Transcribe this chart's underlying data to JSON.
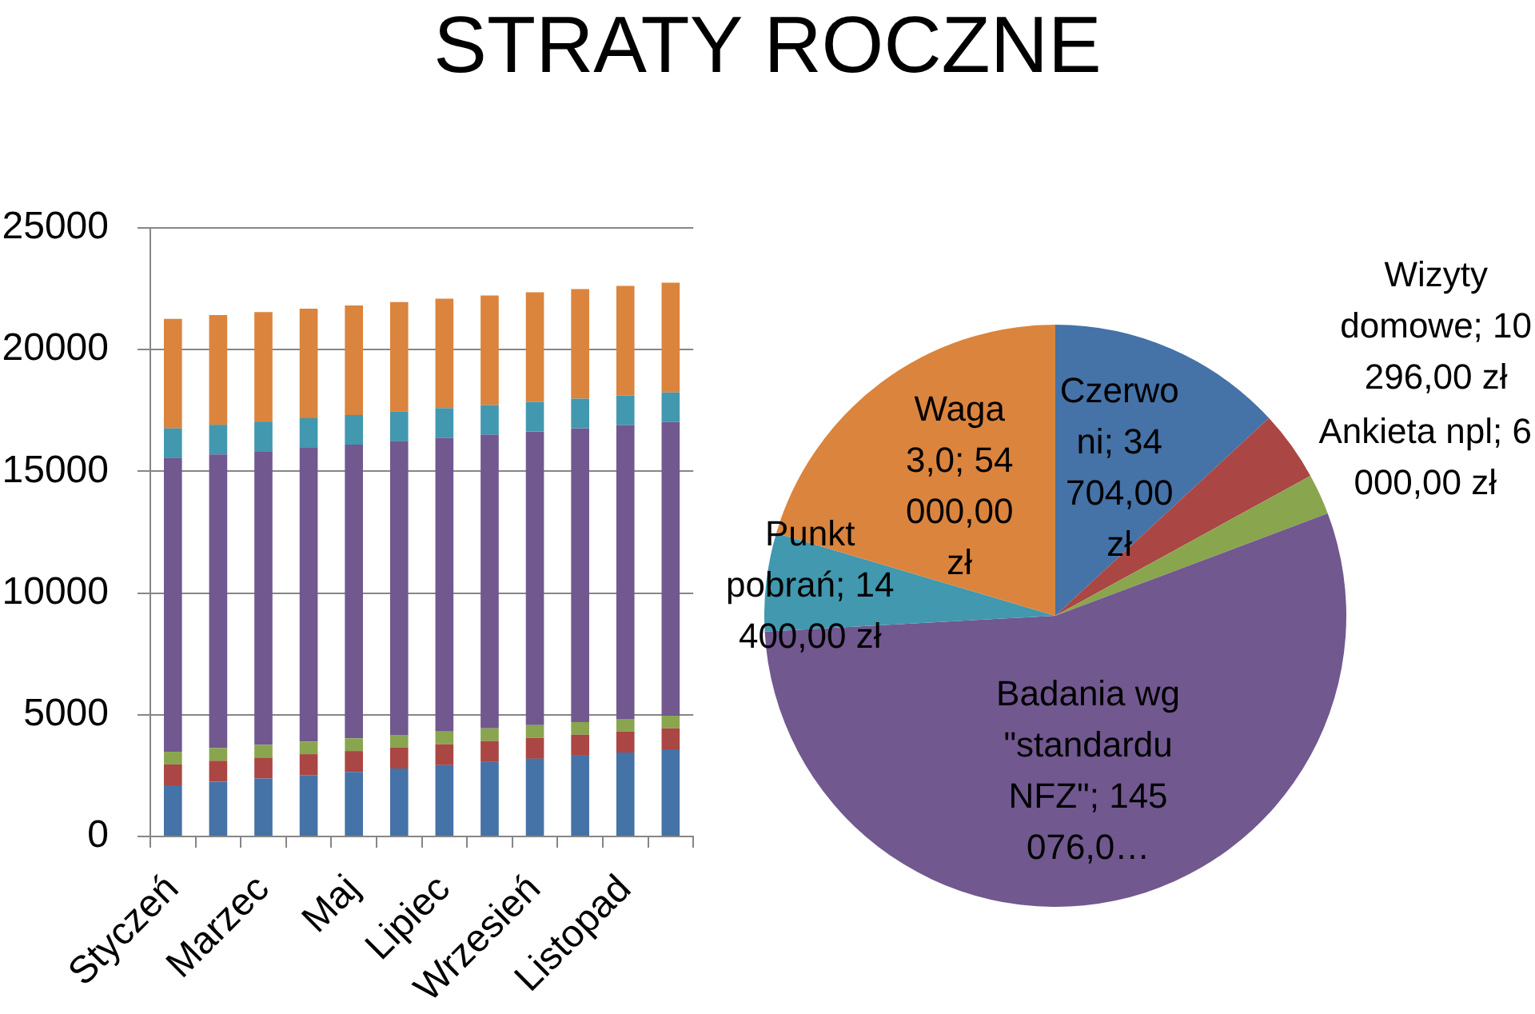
{
  "chart_data": [
    {
      "type": "bar",
      "title": "STRATY ROCZNE",
      "categories": [
        "Styczeń",
        null,
        "Marzec",
        null,
        "Maj",
        null,
        "Lipiec",
        null,
        "Wrzesień",
        null,
        "Listopad",
        null
      ],
      "stacked": true,
      "series": [
        {
          "color": "#4572a7",
          "values": [
            2100,
            2250,
            2380,
            2520,
            2650,
            2790,
            2930,
            3060,
            3190,
            3320,
            3450,
            3580
          ]
        },
        {
          "color": "#aa4643",
          "values": [
            860,
            860,
            860,
            860,
            860,
            860,
            860,
            860,
            860,
            860,
            860,
            860
          ]
        },
        {
          "color": "#89a54e",
          "values": [
            520,
            520,
            520,
            520,
            520,
            520,
            520,
            520,
            520,
            520,
            520,
            520
          ]
        },
        {
          "color": "#71588f",
          "values": [
            12060,
            12060,
            12060,
            12060,
            12060,
            12060,
            12060,
            12060,
            12060,
            12060,
            12060,
            12060
          ]
        },
        {
          "color": "#4198af",
          "values": [
            1220,
            1220,
            1220,
            1220,
            1220,
            1220,
            1220,
            1220,
            1220,
            1220,
            1220,
            1220
          ]
        },
        {
          "color": "#db843d",
          "values": [
            4500,
            4500,
            4500,
            4500,
            4500,
            4500,
            4500,
            4500,
            4500,
            4500,
            4500,
            4500
          ]
        }
      ],
      "ylim": [
        0,
        25000
      ],
      "yticks": [
        0,
        5000,
        10000,
        15000,
        20000,
        25000
      ],
      "grid": "y"
    },
    {
      "type": "pie",
      "categories": [
        "Czerwoni",
        "Wizyty domowe",
        "Ankieta npl",
        "Badania wg \"standardu NFZ\"",
        "Punkt pobrań",
        "Waga 3,0"
      ],
      "values": [
        34704,
        10296,
        6000,
        145076,
        14400,
        54000
      ],
      "colors": [
        "#4572a7",
        "#aa4643",
        "#89a54e",
        "#71588f",
        "#4198af",
        "#db843d"
      ],
      "value_labels": [
        "34 704,00 zł",
        "10 296,00 zł",
        "6 000,00 zł",
        "145 076,0…",
        "14 400,00 zł",
        "54 000,00 zł"
      ]
    }
  ]
}
